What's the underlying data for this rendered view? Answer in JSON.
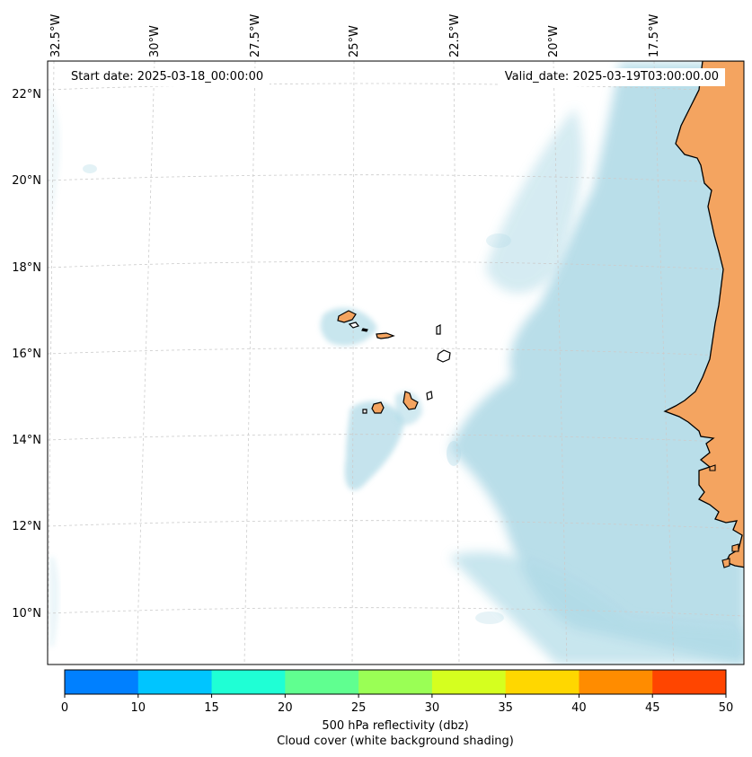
{
  "header": {
    "start_date": "Start date: 2025-03-18_00:00:00",
    "valid_date": "Valid_date: 2025-03-19T03:00:00.00"
  },
  "map": {
    "longitude_labels": [
      "32.5°W",
      "30°W",
      "27.5°W",
      "25°W",
      "22.5°W",
      "20°W",
      "17.5°W"
    ],
    "latitude_labels": [
      "22°N",
      "20°N",
      "18°N",
      "16°N",
      "14°N",
      "12°N",
      "10°N"
    ],
    "colors": {
      "land": "#f4a460",
      "cloud": "#add8e6",
      "coastline": "#000000",
      "gridline": "#cccccc"
    },
    "features": [
      "coastline-west-africa",
      "cape-verde-islands",
      "cloud-cover-shading"
    ]
  },
  "colorbar": {
    "ticks": [
      "0",
      "10",
      "15",
      "20",
      "25",
      "30",
      "35",
      "40",
      "45",
      "50"
    ],
    "colors": [
      "#0080ff",
      "#00c5ff",
      "#1fffd5",
      "#60ff90",
      "#9aff55",
      "#d5ff1f",
      "#ffd700",
      "#ff8c00",
      "#ff4500"
    ],
    "label_line1": "500 hPa reflectivity (dbz)",
    "label_line2": "Cloud cover (white background shading)"
  }
}
